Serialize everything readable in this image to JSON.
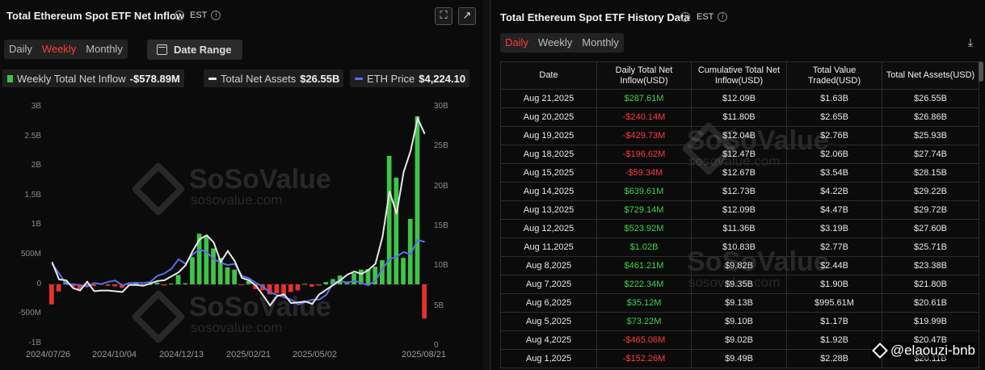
{
  "left_panel": {
    "title": "Total Ethereum Spot ETF Net Inflow",
    "timezone": "EST",
    "tabs": [
      "Daily",
      "Weekly",
      "Monthly"
    ],
    "active_tab": "Weekly",
    "date_range_label": "Date Range",
    "legend": {
      "inflow_label": "Weekly Total Net Inflow",
      "inflow_value": "-$578.89M",
      "assets_label": "Total Net Assets",
      "assets_value": "$26.55B",
      "price_label": "ETH Price",
      "price_value": "$4,224.10"
    },
    "watermark": {
      "brand": "SoSoValue",
      "url": "sosovalue.com"
    }
  },
  "chart_data": {
    "type": "bar",
    "series_types": {
      "Weekly Total Net Inflow": "bar",
      "Total Net Assets": "line",
      "ETH Price": "line"
    },
    "colors": {
      "positive": "#3fc44a",
      "negative": "#e8312f",
      "net_assets": "#e8e8e8",
      "eth_price": "#5b6ee8"
    },
    "y_left_ticks": [
      "3B",
      "2.5B",
      "2B",
      "1.5B",
      "1B",
      "500M",
      "0",
      "-500M",
      "-1B"
    ],
    "y_left_range": [
      -1000,
      3000
    ],
    "y_right_ticks": [
      "30B",
      "25B",
      "20B",
      "15B",
      "10B",
      "5B",
      "0"
    ],
    "y_right_range": [
      0,
      30
    ],
    "x_ticks": [
      "2024/07/26",
      "2024/10/04",
      "2024/12/13",
      "2025/02/21",
      "2025/05/02",
      "2025/08/21"
    ],
    "inflow_musd": [
      -340,
      -120,
      50,
      -45,
      -90,
      -40,
      -30,
      20,
      -25,
      -35,
      -60,
      -10,
      40,
      -15,
      5,
      30,
      -20,
      15,
      160,
      20,
      460,
      860,
      830,
      610,
      450,
      290,
      250,
      -10,
      60,
      -80,
      -100,
      -170,
      -150,
      -210,
      -130,
      -100,
      10,
      -40,
      -20,
      40,
      90,
      150,
      50,
      190,
      250,
      260,
      300,
      410,
      2180,
      1810,
      450,
      1110,
      2850,
      -578.89
    ],
    "net_assets_busd": [
      10.3,
      8.1,
      8.0,
      7.0,
      6.7,
      7.8,
      6.6,
      6.7,
      6.7,
      6.6,
      6.5,
      7.4,
      7.4,
      7.3,
      7.6,
      7.9,
      8.0,
      8.5,
      9.0,
      9.9,
      11.7,
      13.2,
      13.7,
      12.8,
      10.3,
      11.7,
      10.4,
      8.3,
      8.0,
      7.3,
      6.1,
      4.8,
      6.0,
      6.2,
      5.1,
      5.2,
      5.3,
      5.0,
      6.2,
      6.8,
      7.4,
      8.0,
      8.7,
      9.1,
      8.8,
      9.3,
      10.1,
      13.5,
      19.3,
      16.4,
      21.7,
      24.4,
      28.5,
      26.55
    ],
    "eth_price_usd": [
      3300,
      2900,
      2450,
      2450,
      2400,
      2350,
      2500,
      2450,
      2550,
      2600,
      2400,
      2500,
      2500,
      2500,
      2550,
      2800,
      2900,
      3100,
      3500,
      3300,
      3700,
      3900,
      3800,
      3500,
      3350,
      3250,
      3300,
      2800,
      2700,
      2500,
      2350,
      2100,
      2000,
      1900,
      1800,
      1600,
      1700,
      1800,
      1800,
      2000,
      2500,
      2600,
      2500,
      2600,
      2500,
      2400,
      2600,
      3100,
      3500,
      3600,
      3800,
      3700,
      4300,
      4224.1
    ]
  },
  "right_panel": {
    "title": "Total Ethereum Spot ETF History Data",
    "timezone": "EST",
    "tabs": [
      "Daily",
      "Weekly",
      "Monthly"
    ],
    "active_tab": "Daily",
    "download_icon": "download-icon",
    "watermark": {
      "brand": "SoSoValue",
      "url": "sosovalue.com"
    },
    "columns": [
      "Date",
      "Daily Total Net Inflow(USD)",
      "Cumulative Total Net Inflow(USD)",
      "Total Value Traded(USD)",
      "Total Net Assets(USD)"
    ],
    "rows": [
      [
        "Aug 21,2025",
        "$287.61M",
        "$12.09B",
        "$1.63B",
        "$26.55B"
      ],
      [
        "Aug 20,2025",
        "-$240.14M",
        "$11.80B",
        "$2.65B",
        "$26.86B"
      ],
      [
        "Aug 19,2025",
        "-$429.73M",
        "$12.04B",
        "$2.76B",
        "$25.93B"
      ],
      [
        "Aug 18,2025",
        "-$196.62M",
        "$12.47B",
        "$2.06B",
        "$27.74B"
      ],
      [
        "Aug 15,2025",
        "-$59.34M",
        "$12.67B",
        "$3.54B",
        "$28.15B"
      ],
      [
        "Aug 14,2025",
        "$639.61M",
        "$12.73B",
        "$4.22B",
        "$29.22B"
      ],
      [
        "Aug 13,2025",
        "$729.14M",
        "$12.09B",
        "$4.47B",
        "$29.72B"
      ],
      [
        "Aug 12,2025",
        "$523.92M",
        "$11.36B",
        "$3.19B",
        "$27.60B"
      ],
      [
        "Aug 11,2025",
        "$1.02B",
        "$10.83B",
        "$2.77B",
        "$25.71B"
      ],
      [
        "Aug 8,2025",
        "$461.21M",
        "$9.82B",
        "$2.44B",
        "$23.38B"
      ],
      [
        "Aug 7,2025",
        "$222.34M",
        "$9.35B",
        "$1.90B",
        "$21.80B"
      ],
      [
        "Aug 6,2025",
        "$35.12M",
        "$9.13B",
        "$995.61M",
        "$20.61B"
      ],
      [
        "Aug 5,2025",
        "$73.22M",
        "$9.10B",
        "$1.17B",
        "$19.99B"
      ],
      [
        "Aug 4,2025",
        "-$465.06M",
        "$9.02B",
        "$1.92B",
        "$20.47B"
      ],
      [
        "Aug 1,2025",
        "-$152.26M",
        "$9.49B",
        "$2.28B",
        "$20.11B"
      ]
    ]
  },
  "credit": "@elaouzi-bnb"
}
